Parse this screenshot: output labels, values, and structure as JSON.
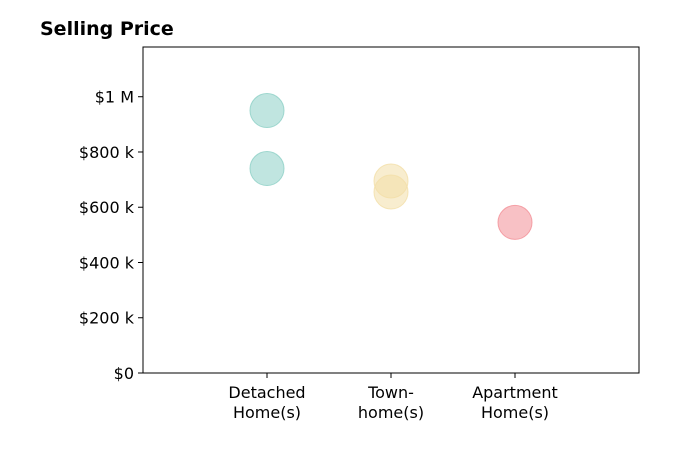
{
  "chart_data": {
    "type": "scatter",
    "title": "Selling Price",
    "xlabel": "",
    "ylabel": "",
    "categories": [
      [
        "Detached",
        "Home(s)"
      ],
      [
        "Town-",
        "home(s)"
      ],
      [
        "Apartment",
        "Home(s)"
      ]
    ],
    "ylim": [
      0,
      1180000
    ],
    "yticks": [
      {
        "value": 0,
        "label": "$0"
      },
      {
        "value": 200000,
        "label": "$200 k"
      },
      {
        "value": 400000,
        "label": "$400 k"
      },
      {
        "value": 600000,
        "label": "$600 k"
      },
      {
        "value": 800000,
        "label": "$800 k"
      },
      {
        "value": 1000000,
        "label": "$1 M"
      }
    ],
    "grid": false,
    "points": [
      {
        "category": 0,
        "value": 950000,
        "color": "#8ccfc6"
      },
      {
        "category": 0,
        "value": 740000,
        "color": "#8ccfc6"
      },
      {
        "category": 1,
        "value": 695000,
        "color": "#f2dfa8"
      },
      {
        "category": 1,
        "value": 655000,
        "color": "#f2dfa8"
      },
      {
        "category": 2,
        "value": 545000,
        "color": "#f28e96"
      }
    ]
  }
}
